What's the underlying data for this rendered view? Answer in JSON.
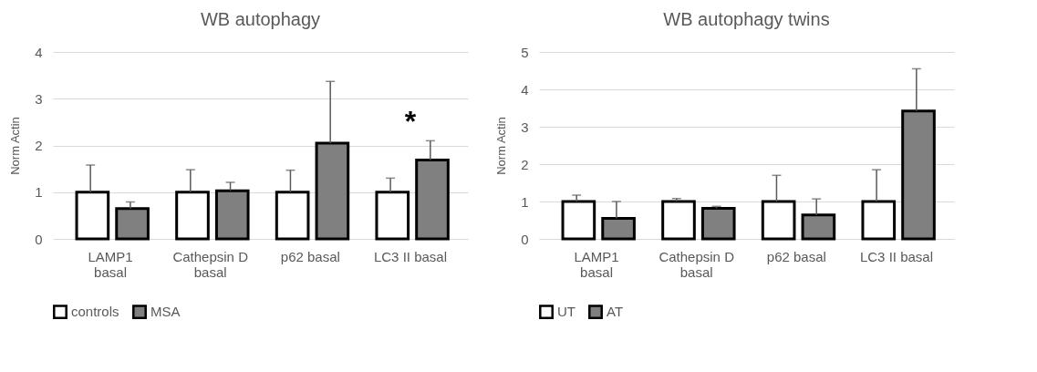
{
  "chart_data": [
    {
      "type": "bar",
      "title": "WB autophagy",
      "ylabel": "Norm Actin",
      "categories": [
        "LAMP1 basal",
        "Cathepsin D basal",
        "p62 basal",
        "LC3 II basal"
      ],
      "series": [
        {
          "name": "controls",
          "color": "#ffffff",
          "values": [
            1,
            1,
            1,
            1
          ],
          "errors": [
            [
              1,
              1.58
            ],
            [
              1,
              1.48
            ],
            [
              1,
              1.47
            ],
            [
              1,
              1.3
            ]
          ]
        },
        {
          "name": "MSA",
          "color": "#808080",
          "values": [
            0.65,
            1.03,
            2.05,
            1.69
          ],
          "errors": [
            [
              0.65,
              0.79
            ],
            [
              1.03,
              1.21
            ],
            [
              2.05,
              3.37
            ],
            [
              1.69,
              2.1
            ]
          ]
        }
      ],
      "ylim": [
        0,
        4
      ],
      "yticks": [
        0,
        1,
        2,
        3,
        4
      ],
      "grid": "y",
      "legend": "bottom",
      "annotations": [
        "*"
      ]
    },
    {
      "type": "bar",
      "title": "WB autophagy twins",
      "ylabel": "Norm Actin",
      "categories": [
        "LAMP1 basal",
        "Cathepsin D basal",
        "p62 basal",
        "LC3 II basal"
      ],
      "series": [
        {
          "name": "UT",
          "color": "#ffffff",
          "values": [
            1,
            1,
            1,
            1
          ],
          "errors": [
            [
              1,
              1.17
            ],
            [
              1,
              1.08
            ],
            [
              1,
              1.7
            ],
            [
              1,
              1.85
            ]
          ]
        },
        {
          "name": "AT",
          "color": "#808080",
          "values": [
            0.55,
            0.82,
            0.64,
            3.42
          ],
          "errors": [
            [
              0.55,
              1
            ],
            [
              0.82,
              0.87
            ],
            [
              0.64,
              1.07
            ],
            [
              3.42,
              4.55
            ]
          ]
        }
      ],
      "ylim": [
        0,
        5
      ],
      "yticks": [
        0,
        1,
        2,
        3,
        4,
        5
      ],
      "grid": "y",
      "legend": "bottom"
    }
  ]
}
